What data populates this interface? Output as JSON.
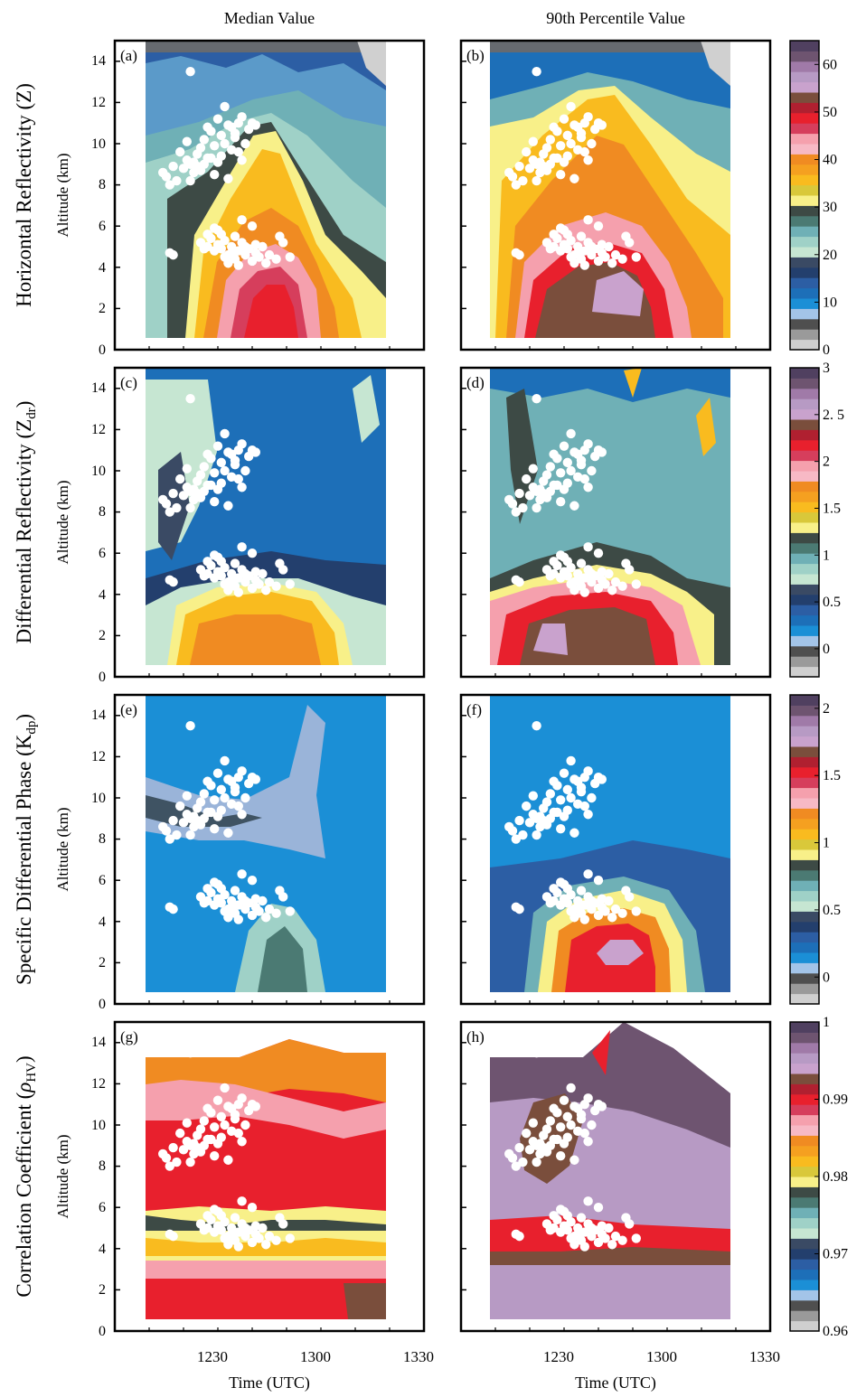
{
  "figure": {
    "column_titles": [
      "Median Value",
      "90th Percentile Value"
    ],
    "xlabel": "Time (UTC)",
    "ylabel": "Altitude (km)",
    "x_ticks": [
      "1230",
      "1300",
      "1330"
    ],
    "y_ticks": [
      "0",
      "2",
      "4",
      "6",
      "8",
      "10",
      "12",
      "14"
    ]
  },
  "chart_data": [
    {
      "type": "heatmap",
      "row_title": "Horizontal Reflectivity (Z)",
      "panels": [
        {
          "label": "(a)",
          "column": "Median Value",
          "peak": {
            "time": 1253,
            "alt_km": 2.0,
            "value": 50
          },
          "description_levels": [
            0,
            10,
            20,
            30,
            40,
            50
          ]
        },
        {
          "label": "(b)",
          "column": "90th Percentile Value",
          "peak": {
            "time": 1250,
            "alt_km": 2.5,
            "value": 60
          },
          "description_levels": [
            0,
            10,
            20,
            30,
            40,
            50,
            60
          ]
        }
      ],
      "colorbar": {
        "ticks": [
          "0",
          "10",
          "20",
          "30",
          "40",
          "50",
          "60"
        ],
        "range": [
          0,
          65
        ]
      }
    },
    {
      "type": "heatmap",
      "row_title": "Differential Reflectivity (Z",
      "row_title_sub": "dr",
      "panels": [
        {
          "label": "(c)",
          "column": "Median Value",
          "peak": {
            "time": 1245,
            "alt_km": 2.0,
            "value": 1.8
          }
        },
        {
          "label": "(d)",
          "column": "90th Percentile Value",
          "peak": {
            "time": 1245,
            "alt_km": 1.5,
            "value": 2.8
          }
        }
      ],
      "colorbar": {
        "ticks": [
          "0",
          "0.5",
          "1",
          "1.5",
          "2",
          "2. 5",
          "3"
        ],
        "range": [
          -0.3,
          3.0
        ]
      }
    },
    {
      "type": "heatmap",
      "row_title": "Specific Differential Phase (K",
      "row_title_sub": "dp",
      "panels": [
        {
          "label": "(e)",
          "column": "Median Value",
          "peak": {
            "time": 1253,
            "alt_km": 1.5,
            "value": 0.8
          }
        },
        {
          "label": "(f)",
          "column": "90th Percentile Value",
          "peak": {
            "time": 1253,
            "alt_km": 3.0,
            "value": 2.0
          }
        }
      ],
      "colorbar": {
        "ticks": [
          "0",
          "0.5",
          "1",
          "1.5",
          "2"
        ],
        "range": [
          -0.2,
          2.1
        ]
      }
    },
    {
      "type": "heatmap",
      "row_title": "Correlation Coefficient (",
      "row_title_sym": "ρ",
      "row_title_sub": "HV",
      "panels": [
        {
          "label": "(g)",
          "column": "Median Value",
          "peak": {
            "time": 1250,
            "alt_km": 8.0,
            "value": 0.99
          }
        },
        {
          "label": "(h)",
          "column": "90th Percentile Value",
          "peak": {
            "time": 1255,
            "alt_km": 13.0,
            "value": 1.0
          }
        }
      ],
      "colorbar": {
        "ticks": [
          "0.96",
          "0.97",
          "0.98",
          "0.99",
          "1"
        ],
        "range": [
          0.96,
          1.0
        ]
      }
    }
  ],
  "lightning": {
    "color": "#ffffff",
    "points": [
      [
        1237,
        13.5
      ],
      [
        1235,
        8.8
      ],
      [
        1236,
        9.2
      ],
      [
        1237,
        9.0
      ],
      [
        1238,
        8.6
      ],
      [
        1239,
        9.5
      ],
      [
        1240,
        9.8
      ],
      [
        1241,
        10.2
      ],
      [
        1242,
        9.3
      ],
      [
        1243,
        10.6
      ],
      [
        1244,
        9.9
      ],
      [
        1245,
        11.2
      ],
      [
        1246,
        10.4
      ],
      [
        1247,
        11.8
      ],
      [
        1248,
        10.9
      ],
      [
        1249,
        9.7
      ],
      [
        1250,
        10.5
      ],
      [
        1251,
        11.0
      ],
      [
        1252,
        9.2
      ],
      [
        1253,
        10.0
      ],
      [
        1230,
        8.4
      ],
      [
        1231,
        8.0
      ],
      [
        1232,
        8.9
      ],
      [
        1233,
        8.2
      ],
      [
        1234,
        9.6
      ],
      [
        1236,
        10.1
      ],
      [
        1238,
        9.1
      ],
      [
        1240,
        8.7
      ],
      [
        1242,
        10.8
      ],
      [
        1244,
        8.5
      ],
      [
        1246,
        9.4
      ],
      [
        1248,
        8.3
      ],
      [
        1250,
        10.3
      ],
      [
        1252,
        11.3
      ],
      [
        1254,
        10.7
      ],
      [
        1255,
        11.0
      ],
      [
        1229,
        8.6
      ],
      [
        1237,
        8.2
      ],
      [
        1241,
        9.0
      ],
      [
        1245,
        9.1
      ],
      [
        1247,
        10.0
      ],
      [
        1249,
        10.8
      ],
      [
        1251,
        9.6
      ],
      [
        1243,
        9.3
      ],
      [
        1239,
        8.9
      ],
      [
        1256,
        10.9
      ],
      [
        1231,
        4.7
      ],
      [
        1232,
        4.6
      ],
      [
        1240,
        5.2
      ],
      [
        1242,
        5.0
      ],
      [
        1243,
        5.4
      ],
      [
        1244,
        4.8
      ],
      [
        1245,
        5.1
      ],
      [
        1246,
        4.9
      ],
      [
        1247,
        5.3
      ],
      [
        1248,
        4.6
      ],
      [
        1249,
        5.0
      ],
      [
        1250,
        4.4
      ],
      [
        1251,
        4.8
      ],
      [
        1252,
        5.2
      ],
      [
        1253,
        4.6
      ],
      [
        1254,
        4.9
      ],
      [
        1255,
        4.3
      ],
      [
        1256,
        4.7
      ],
      [
        1257,
        4.5
      ],
      [
        1258,
        5.0
      ],
      [
        1259,
        4.2
      ],
      [
        1260,
        4.6
      ],
      [
        1262,
        4.4
      ],
      [
        1263,
        5.5
      ],
      [
        1264,
        5.2
      ],
      [
        1266,
        4.5
      ],
      [
        1244,
        5.9
      ],
      [
        1246,
        5.6
      ],
      [
        1252,
        6.3
      ],
      [
        1255,
        6.0
      ],
      [
        1241,
        4.9
      ],
      [
        1248,
        4.2
      ],
      [
        1250,
        5.5
      ],
      [
        1247,
        4.5
      ],
      [
        1253,
        5.0
      ],
      [
        1249,
        4.7
      ],
      [
        1245,
        5.8
      ],
      [
        1251,
        4.1
      ],
      [
        1256,
        5.1
      ],
      [
        1242,
        5.6
      ]
    ]
  }
}
